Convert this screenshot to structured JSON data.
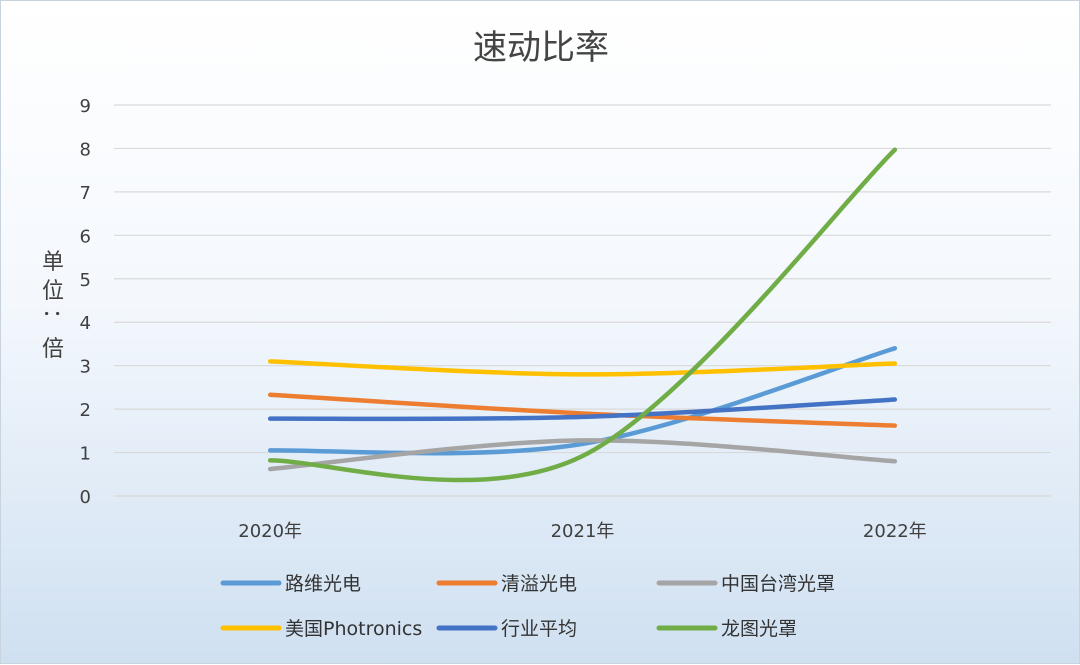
{
  "chart_data": {
    "type": "line",
    "title": "速动比率",
    "ylabel": "单位：倍",
    "xlabel": "",
    "categories": [
      "2020年",
      "2021年",
      "2022年"
    ],
    "yticks": [
      "0",
      "1",
      "2",
      "3",
      "4",
      "5",
      "6",
      "7",
      "8",
      "9"
    ],
    "ylim": [
      0,
      9
    ],
    "grid": true,
    "smooth": true,
    "legend_position": "bottom",
    "series": [
      {
        "name": "路维光电",
        "color": "#5b9bd5",
        "values": [
          1.05,
          1.2,
          3.4
        ]
      },
      {
        "name": "清溢光电",
        "color": "#ed7d31",
        "values": [
          2.33,
          1.9,
          1.62
        ]
      },
      {
        "name": "中国台湾光罩",
        "color": "#a5a5a5",
        "values": [
          0.62,
          1.28,
          0.8
        ]
      },
      {
        "name": "美国Photronics",
        "color": "#ffc000",
        "values": [
          3.1,
          2.8,
          3.05
        ]
      },
      {
        "name": "行业平均",
        "color": "#4472c4",
        "values": [
          1.78,
          1.82,
          2.22
        ]
      },
      {
        "name": "龙图光罩",
        "color": "#70ad47",
        "values": [
          0.82,
          0.92,
          7.97
        ]
      }
    ]
  }
}
